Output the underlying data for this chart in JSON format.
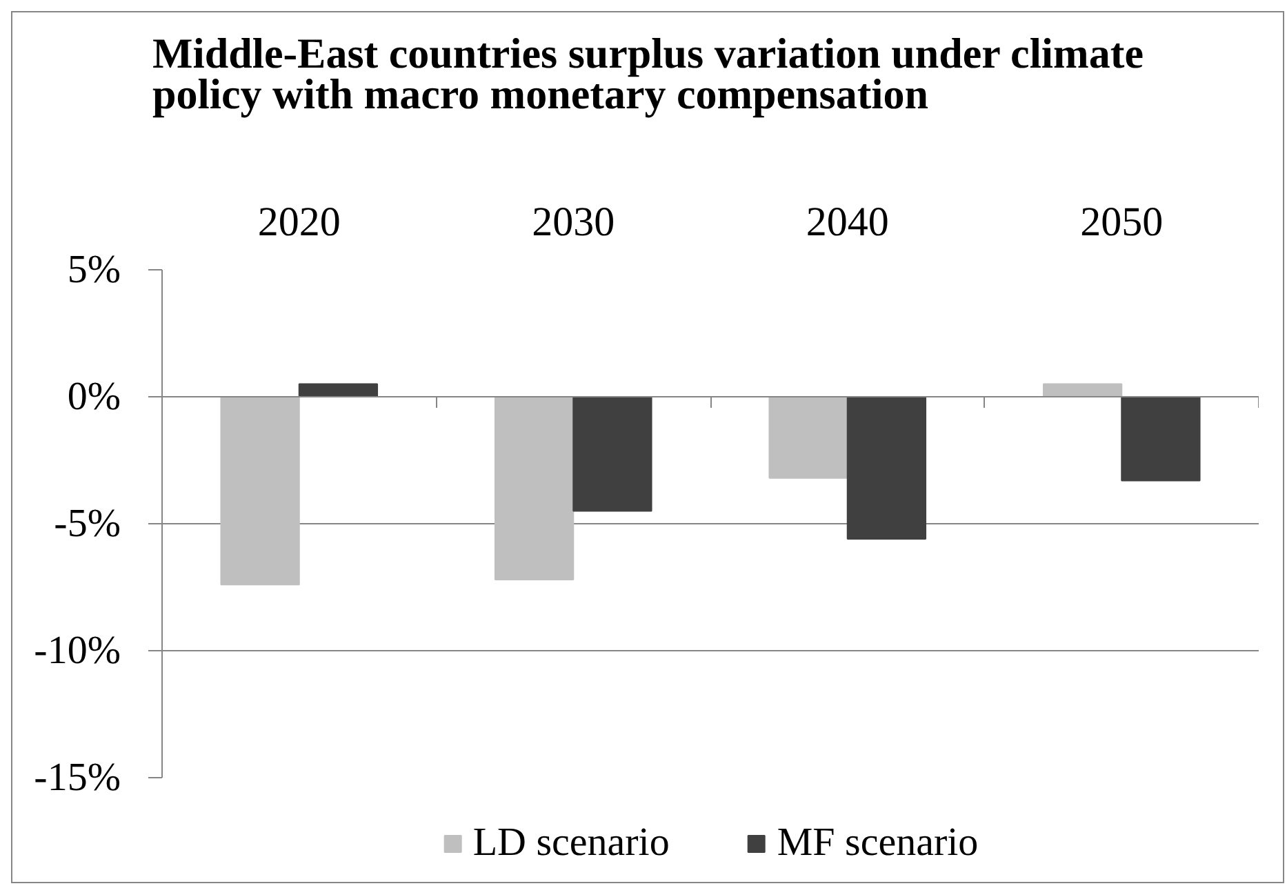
{
  "chart_data": {
    "type": "bar",
    "title": "Middle-East countries surplus variation under climate\npolicy with macro monetary compensation",
    "categories": [
      "2020",
      "2030",
      "2040",
      "2050"
    ],
    "series": [
      {
        "name": "LD scenario",
        "color": "#bfbfbf",
        "values": [
          -7.4,
          -7.2,
          -3.2,
          0.5
        ]
      },
      {
        "name": "MF scenario",
        "color": "#404040",
        "values": [
          0.5,
          -4.5,
          -5.6,
          -3.3
        ]
      }
    ],
    "ylim": [
      -15,
      5
    ],
    "yticks": [
      {
        "value": 5,
        "label": "5%"
      },
      {
        "value": 0,
        "label": "0%"
      },
      {
        "value": -5,
        "label": "-5%"
      },
      {
        "value": -10,
        "label": "-10%"
      },
      {
        "value": -15,
        "label": "-15%"
      }
    ],
    "grid": "y",
    "legend": "bottom"
  }
}
